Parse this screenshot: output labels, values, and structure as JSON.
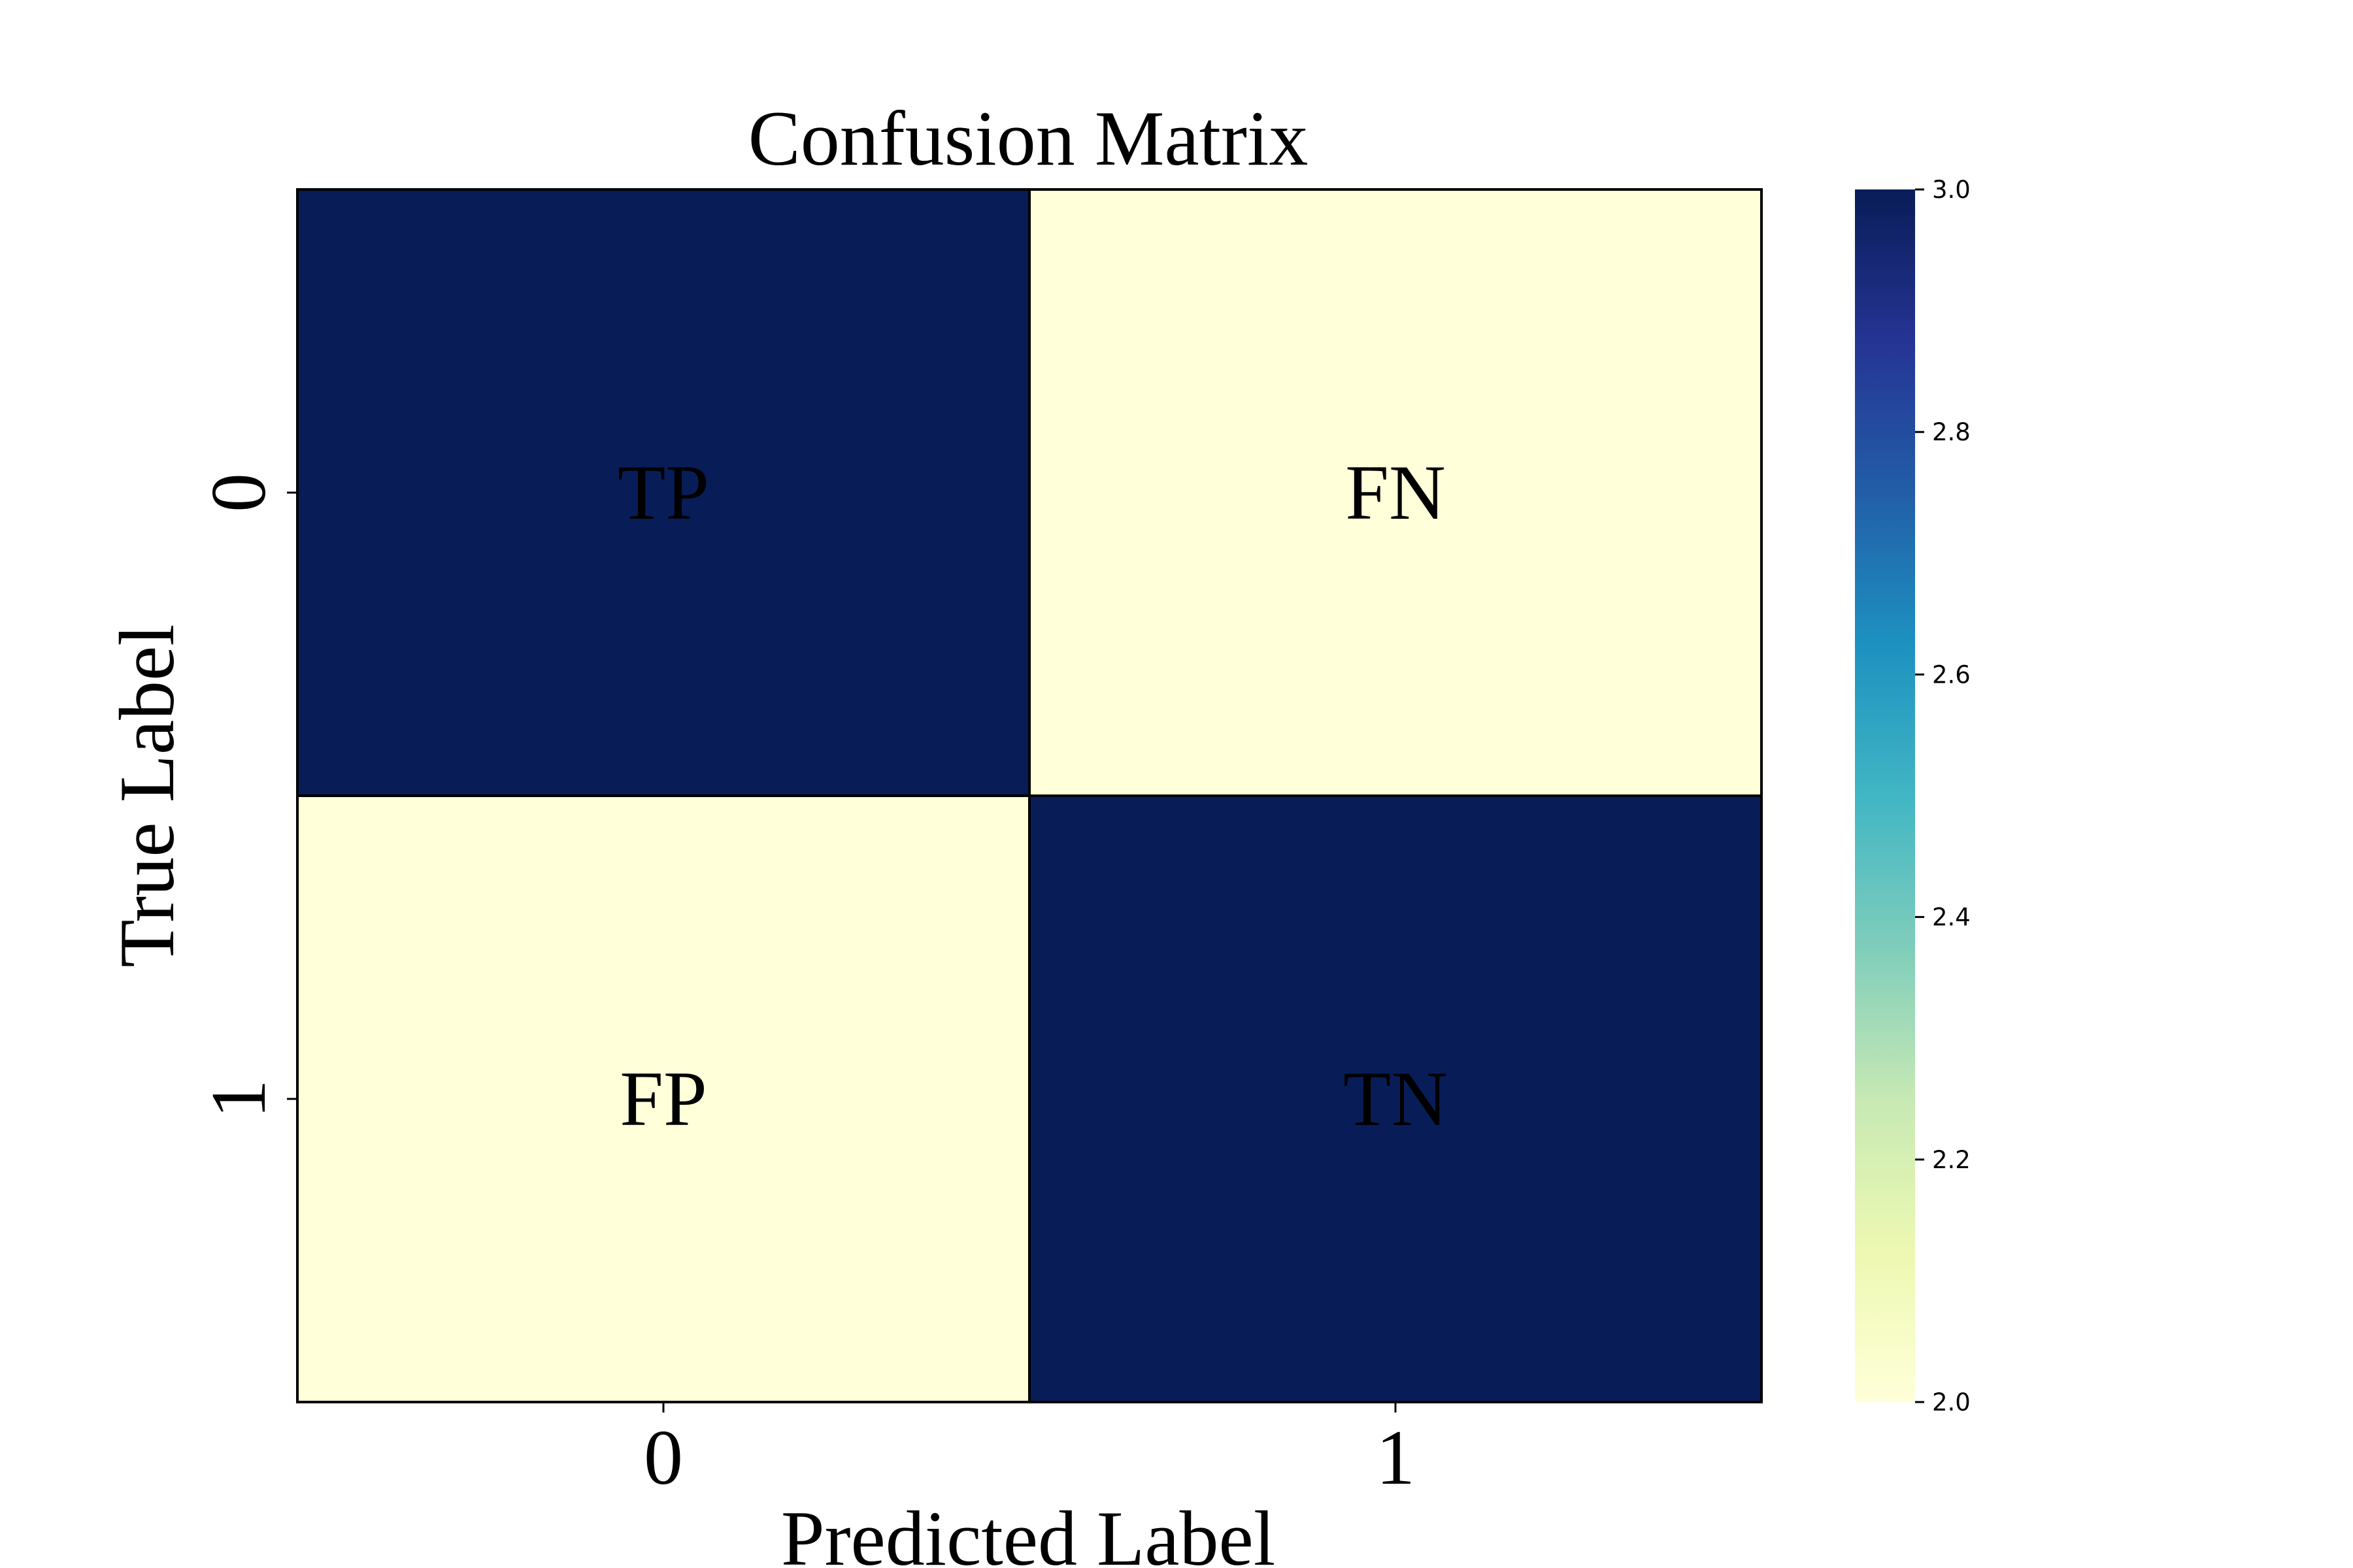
{
  "chart_data": {
    "type": "heatmap",
    "title": "Confusion Matrix",
    "xlabel": "Predicted Label",
    "ylabel": "True Label",
    "x_categories": [
      "0",
      "1"
    ],
    "y_categories": [
      "0",
      "1"
    ],
    "values": [
      [
        3,
        2
      ],
      [
        2,
        3
      ]
    ],
    "annotations": [
      [
        "TP",
        "FN"
      ],
      [
        "FP",
        "TN"
      ]
    ],
    "colorbar": {
      "colormap": "YlGnBu",
      "range": [
        2.0,
        3.0
      ],
      "ticks": [
        "2.0",
        "2.2",
        "2.4",
        "2.6",
        "2.8",
        "3.0"
      ],
      "stops": [
        "#ffffd9",
        "#edf8b1",
        "#c7e9b4",
        "#7fcdbb",
        "#41b6c4",
        "#1d91c0",
        "#225ea8",
        "#253494",
        "#081d58"
      ]
    },
    "grid": false,
    "legend": "colorbar-right"
  }
}
